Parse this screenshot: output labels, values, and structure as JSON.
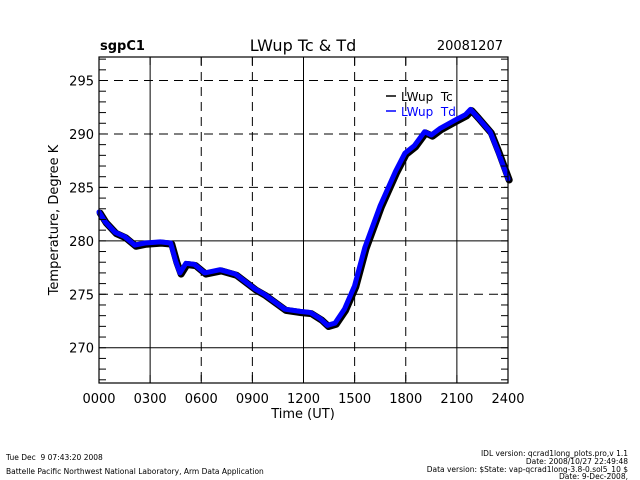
{
  "chart_data": {
    "type": "line",
    "title": "LWup Tc & Td",
    "site": "sgpC1",
    "date": "20081207",
    "xlabel": "Time (UT)",
    "ylabel": "Temperature, Degree K",
    "xlim": [
      0,
      24
    ],
    "ylim": [
      266.7,
      297.2
    ],
    "x_ticks": [
      0,
      3,
      6,
      9,
      12,
      15,
      18,
      21,
      24
    ],
    "x_tick_labels": [
      "0000",
      "0300",
      "0600",
      "0900",
      "1200",
      "1500",
      "1800",
      "2100",
      "2400"
    ],
    "y_ticks": [
      270,
      275,
      280,
      285,
      290,
      295
    ],
    "y_tick_labels": [
      "270",
      "275",
      "280",
      "285",
      "290",
      "295"
    ],
    "grid": true,
    "legend_position": "top-right",
    "series": [
      {
        "name": "LWup  Tc",
        "color": "#000000",
        "x": [
          0.0,
          0.35,
          0.94,
          1.5,
          2.1,
          2.7,
          3.6,
          4.2,
          4.5,
          4.75,
          5.1,
          5.6,
          6.2,
          7.1,
          8.0,
          9.15,
          9.7,
          10.9,
          11.8,
          12.4,
          13.0,
          13.4,
          13.85,
          14.4,
          15.0,
          15.6,
          16.5,
          17.4,
          17.95,
          18.5,
          19.1,
          19.5,
          20.0,
          20.9,
          21.5,
          21.8,
          22.2,
          22.95,
          23.4,
          24.0
        ],
        "values": [
          282.7,
          281.8,
          280.8,
          280.4,
          279.6,
          279.8,
          279.9,
          279.8,
          278.1,
          277.0,
          277.9,
          277.8,
          277.0,
          277.3,
          276.9,
          275.5,
          275.0,
          273.6,
          273.4,
          273.3,
          272.7,
          272.1,
          272.3,
          273.6,
          275.8,
          279.4,
          283.3,
          286.5,
          288.2,
          288.9,
          290.2,
          289.9,
          290.5,
          291.3,
          291.8,
          292.3,
          291.6,
          290.2,
          288.4,
          285.8
        ]
      },
      {
        "name": "LWup  Td",
        "color": "#0000ff",
        "x": [
          0.0,
          0.35,
          0.94,
          1.5,
          2.1,
          2.7,
          3.6,
          4.2,
          4.5,
          4.75,
          5.1,
          5.6,
          6.2,
          7.1,
          8.0,
          9.15,
          9.7,
          10.9,
          11.8,
          12.4,
          13.0,
          13.4,
          13.85,
          14.4,
          15.0,
          15.6,
          16.5,
          17.4,
          17.95,
          18.5,
          19.1,
          19.5,
          20.0,
          20.9,
          21.5,
          21.8,
          22.2,
          22.95,
          23.4,
          24.0
        ],
        "values": [
          282.7,
          281.8,
          280.8,
          280.4,
          279.6,
          279.8,
          279.9,
          279.8,
          278.1,
          277.0,
          277.9,
          277.8,
          277.0,
          277.3,
          276.9,
          275.5,
          275.0,
          273.6,
          273.4,
          273.3,
          272.7,
          272.1,
          272.3,
          273.6,
          275.8,
          279.4,
          283.3,
          286.5,
          288.2,
          288.9,
          290.2,
          289.9,
          290.5,
          291.3,
          291.8,
          292.3,
          291.6,
          290.2,
          288.4,
          285.8
        ]
      }
    ]
  },
  "footer": {
    "timestamp": "Tue Dec  9 07:43:20 2008",
    "institution": "Battelle Pacific Northwest National Laboratory, Arm Data Application",
    "idl_version": "IDL version: qcrad1long_plots.pro,v 1.1",
    "idl_date": "Date: 2008/10/27 22:49:48",
    "data_version": "Data version: $State: vap-qcrad1long-3.8-0.sol5_10 $",
    "data_date": "Date: 9-Dec-2008,"
  }
}
